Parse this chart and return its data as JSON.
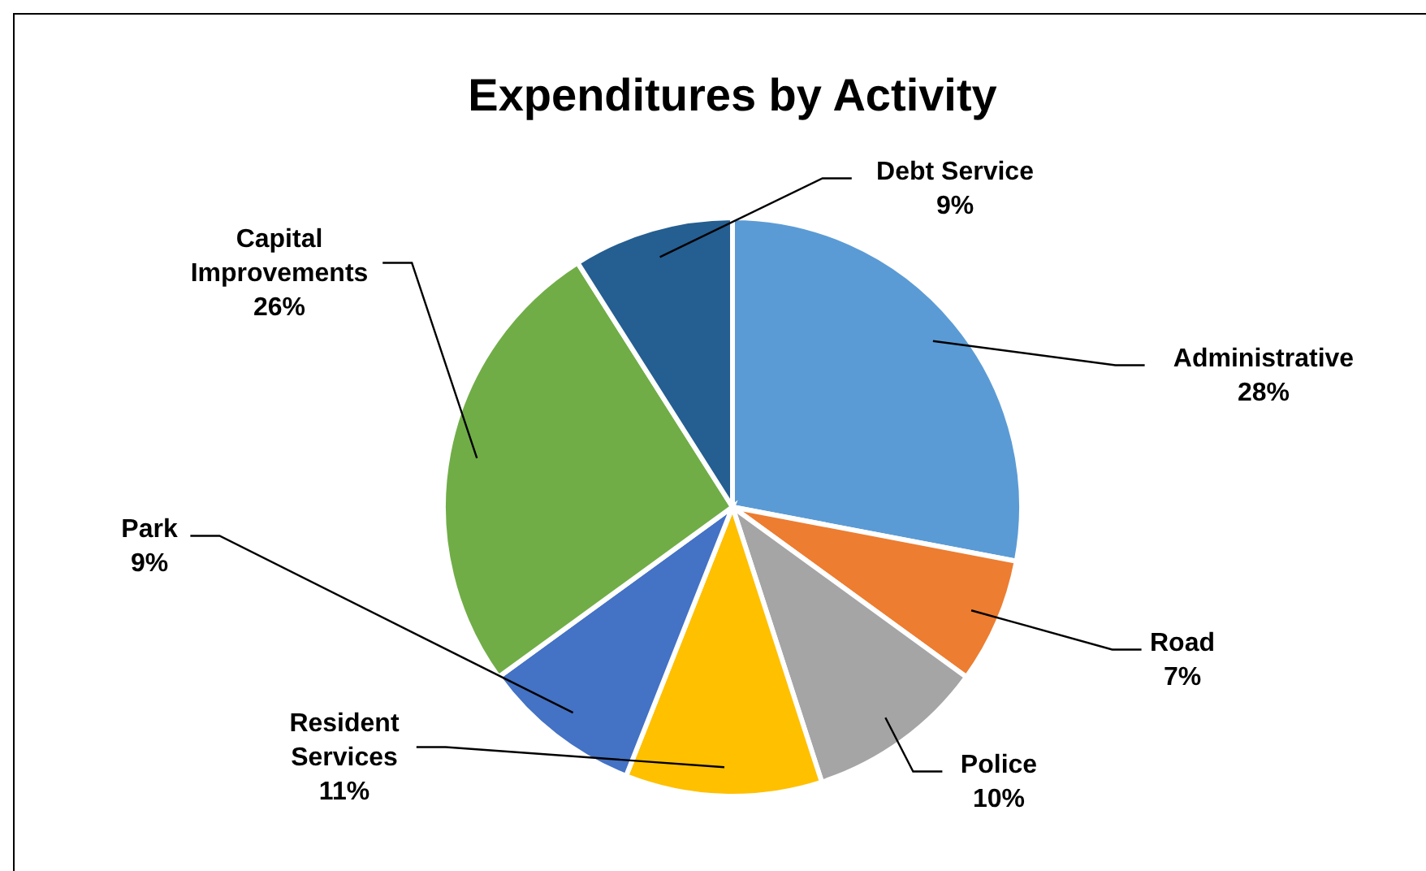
{
  "chart_data": {
    "type": "pie",
    "title": "Expenditures by Activity",
    "categories": [
      "Administrative",
      "Road",
      "Police",
      "Resident Services",
      "Park",
      "Capital Improvements",
      "Debt Service"
    ],
    "values": [
      28,
      7,
      10,
      11,
      9,
      26,
      9
    ],
    "value_labels": [
      "28%",
      "7%",
      "10%",
      "11%",
      "9%",
      "26%",
      "9%"
    ],
    "colors": [
      "#5b9bd5",
      "#ed7d31",
      "#a5a5a5",
      "#ffc000",
      "#4472c4",
      "#70ad47",
      "#255e91"
    ]
  }
}
